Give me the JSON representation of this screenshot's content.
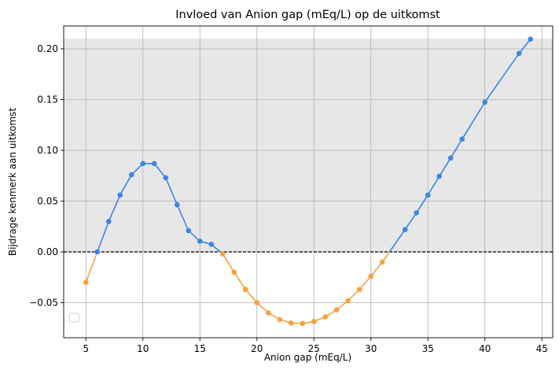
{
  "chart_data": {
    "type": "line",
    "title": "Invloed van Anion gap (mEq/L) op de uitkomst",
    "xlabel": "Anion gap (mEq/L)",
    "ylabel": "Bijdrage kenmerk aan uitkomst",
    "xlim": [
      3.05,
      45.95
    ],
    "ylim": [
      -0.0845,
      0.2225
    ],
    "xticks": [
      5,
      10,
      15,
      20,
      25,
      30,
      35,
      40,
      45
    ],
    "yticks": [
      -0.05,
      0.0,
      0.05,
      0.1,
      0.15,
      0.2
    ],
    "ytick_labels": [
      "−0.05",
      "0.00",
      "0.05",
      "0.10",
      "0.15",
      "0.20"
    ],
    "grid": true,
    "shaded_band": [
      0,
      0.21
    ],
    "reference_line": 0,
    "legend_position": "lower-left",
    "colors": {
      "positive": "#3b86e3",
      "negative": "#f5a23a",
      "band": "#e7e7e7",
      "grid": "#b0b0b0",
      "reference": "#000000"
    },
    "points": [
      {
        "x": 5,
        "y": -0.03
      },
      {
        "x": 6,
        "y": 0.0
      },
      {
        "x": 7,
        "y": 0.03
      },
      {
        "x": 8,
        "y": 0.056
      },
      {
        "x": 9,
        "y": 0.076
      },
      {
        "x": 10,
        "y": 0.087
      },
      {
        "x": 11,
        "y": 0.087
      },
      {
        "x": 12,
        "y": 0.073
      },
      {
        "x": 13,
        "y": 0.0465
      },
      {
        "x": 14,
        "y": 0.021
      },
      {
        "x": 15,
        "y": 0.0105
      },
      {
        "x": 16,
        "y": 0.0075
      },
      {
        "x": 17,
        "y": -0.002
      },
      {
        "x": 18,
        "y": -0.02
      },
      {
        "x": 19,
        "y": -0.037
      },
      {
        "x": 20,
        "y": -0.05
      },
      {
        "x": 21,
        "y": -0.06
      },
      {
        "x": 22,
        "y": -0.0665
      },
      {
        "x": 23,
        "y": -0.07
      },
      {
        "x": 24,
        "y": -0.0705
      },
      {
        "x": 25,
        "y": -0.0685
      },
      {
        "x": 26,
        "y": -0.064
      },
      {
        "x": 27,
        "y": -0.057
      },
      {
        "x": 28,
        "y": -0.048
      },
      {
        "x": 29,
        "y": -0.037
      },
      {
        "x": 30,
        "y": -0.024
      },
      {
        "x": 31,
        "y": -0.01
      },
      {
        "x": 33,
        "y": 0.022
      },
      {
        "x": 34,
        "y": 0.0385
      },
      {
        "x": 35,
        "y": 0.056
      },
      {
        "x": 36,
        "y": 0.0745
      },
      {
        "x": 37,
        "y": 0.0925
      },
      {
        "x": 38,
        "y": 0.111
      },
      {
        "x": 40,
        "y": 0.1475
      },
      {
        "x": 43,
        "y": 0.1955
      },
      {
        "x": 44,
        "y": 0.2095
      }
    ]
  }
}
